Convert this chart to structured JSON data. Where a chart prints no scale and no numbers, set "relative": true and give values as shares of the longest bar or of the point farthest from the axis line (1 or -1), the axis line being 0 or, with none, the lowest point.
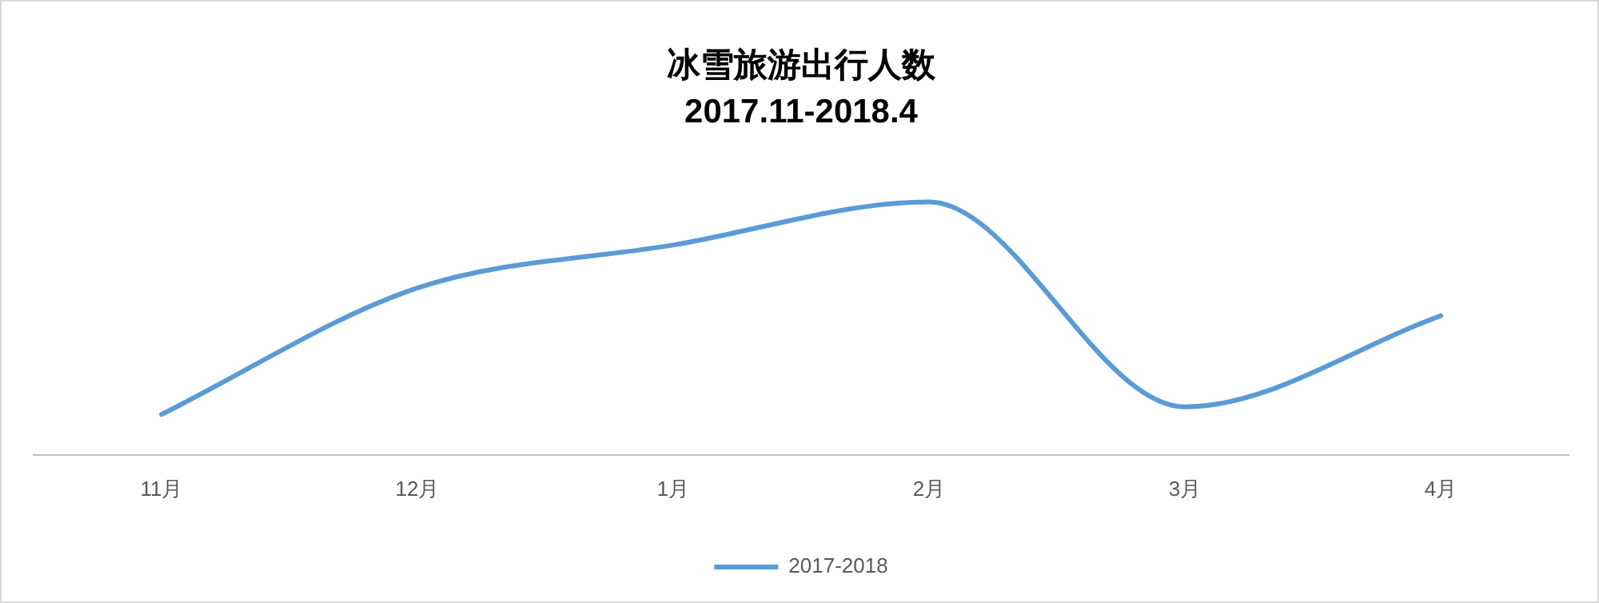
{
  "chart_data": {
    "type": "line",
    "title": "冰雪旅游出行人数",
    "subtitle": "2017.11-2018.4",
    "categories": [
      "11月",
      "12月",
      "1月",
      "2月",
      "3月",
      "4月"
    ],
    "relative": true,
    "series": [
      {
        "name": "2017-2018",
        "color": "#5b9bd5",
        "values": [
          0.16,
          0.66,
          0.83,
          1,
          0.19,
          0.55
        ]
      }
    ],
    "legend": "bottom",
    "grid": false,
    "marker": "none",
    "line_style": "solid"
  }
}
